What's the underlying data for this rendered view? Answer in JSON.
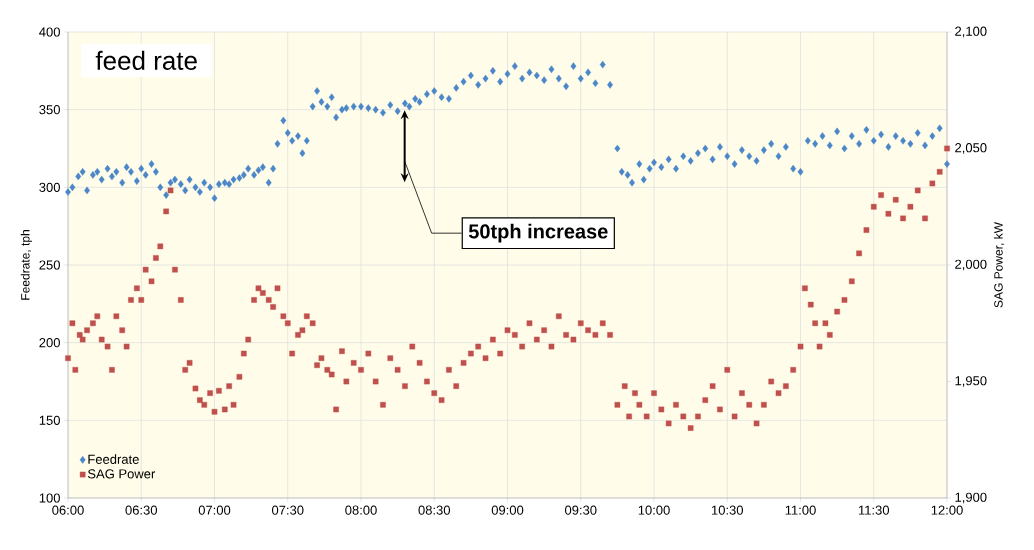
{
  "chart_data": {
    "type": "scatter",
    "title": "feed rate",
    "ylabel": "Feedrate, tph",
    "y2label": "SAG Power, kW",
    "xlim": [
      6,
      12
    ],
    "xticks": [
      {
        "value": 6,
        "label": "06:00"
      },
      {
        "value": 6.5,
        "label": "06:30"
      },
      {
        "value": 7,
        "label": "07:00"
      },
      {
        "value": 7.5,
        "label": "07:30"
      },
      {
        "value": 8,
        "label": "08:00"
      },
      {
        "value": 8.5,
        "label": "08:30"
      },
      {
        "value": 9,
        "label": "09:00"
      },
      {
        "value": 9.5,
        "label": "09:30"
      },
      {
        "value": 10,
        "label": "10:00"
      },
      {
        "value": 10.5,
        "label": "10:30"
      },
      {
        "value": 11,
        "label": "11:00"
      },
      {
        "value": 11.5,
        "label": "11:30"
      },
      {
        "value": 12,
        "label": "12:00"
      }
    ],
    "ylim": [
      100,
      400
    ],
    "yticks": [
      100,
      150,
      200,
      250,
      300,
      350,
      400
    ],
    "y2lim": [
      1900,
      2100
    ],
    "y2ticks": [
      {
        "value": 1900,
        "label": "1,900"
      },
      {
        "value": 1950,
        "label": "1,950"
      },
      {
        "value": 2000,
        "label": "2,000"
      },
      {
        "value": 2050,
        "label": "2,050"
      },
      {
        "value": 2100,
        "label": "2,100"
      }
    ],
    "grid": true,
    "legend": "bottom left",
    "annotations": [
      "50tph increase"
    ],
    "series": [
      {
        "name": "Feedrate",
        "color": "#4a86c8",
        "marker": "diamond",
        "x": [
          6.0,
          6.03,
          6.07,
          6.1,
          6.13,
          6.17,
          6.2,
          6.23,
          6.27,
          6.3,
          6.33,
          6.37,
          6.4,
          6.43,
          6.47,
          6.5,
          6.53,
          6.57,
          6.6,
          6.63,
          6.67,
          6.7,
          6.73,
          6.77,
          6.8,
          6.83,
          6.87,
          6.9,
          6.93,
          6.97,
          7.0,
          7.03,
          7.07,
          7.1,
          7.13,
          7.17,
          7.2,
          7.23,
          7.27,
          7.3,
          7.33,
          7.37,
          7.4,
          7.43,
          7.47,
          7.5,
          7.53,
          7.57,
          7.6,
          7.63,
          7.67,
          7.7,
          7.73,
          7.77,
          7.8,
          7.83,
          7.87,
          7.9,
          7.95,
          8.0,
          8.05,
          8.1,
          8.15,
          8.2,
          8.25,
          8.3,
          8.33,
          8.37,
          8.4,
          8.45,
          8.5,
          8.55,
          8.6,
          8.65,
          8.7,
          8.75,
          8.8,
          8.85,
          8.9,
          8.95,
          9.0,
          9.05,
          9.1,
          9.15,
          9.2,
          9.25,
          9.3,
          9.35,
          9.4,
          9.45,
          9.5,
          9.55,
          9.6,
          9.65,
          9.7,
          9.75,
          9.78,
          9.82,
          9.85,
          9.9,
          9.93,
          9.97,
          10.0,
          10.05,
          10.1,
          10.15,
          10.2,
          10.25,
          10.3,
          10.35,
          10.4,
          10.45,
          10.5,
          10.55,
          10.6,
          10.65,
          10.7,
          10.75,
          10.8,
          10.85,
          10.9,
          10.95,
          11.0,
          11.05,
          11.1,
          11.15,
          11.2,
          11.25,
          11.3,
          11.35,
          11.4,
          11.45,
          11.5,
          11.55,
          11.6,
          11.65,
          11.7,
          11.75,
          11.8,
          11.85,
          11.9,
          11.95,
          12.0
        ],
        "values": [
          297,
          300,
          307,
          310,
          298,
          308,
          310,
          305,
          312,
          307,
          310,
          303,
          313,
          310,
          304,
          312,
          308,
          315,
          310,
          300,
          295,
          303,
          305,
          302,
          298,
          305,
          300,
          297,
          303,
          300,
          293,
          302,
          303,
          302,
          305,
          306,
          308,
          312,
          308,
          311,
          313,
          303,
          312,
          328,
          343,
          335,
          330,
          333,
          322,
          330,
          352,
          362,
          355,
          352,
          358,
          345,
          350,
          351,
          352,
          352,
          351,
          350,
          348,
          353,
          349,
          354,
          352,
          357,
          355,
          360,
          362,
          358,
          357,
          364,
          368,
          372,
          366,
          370,
          375,
          368,
          373,
          378,
          370,
          374,
          372,
          369,
          376,
          370,
          365,
          378,
          370,
          374,
          367,
          379,
          366,
          325,
          310,
          308,
          303,
          315,
          305,
          312,
          316,
          313,
          318,
          312,
          320,
          317,
          322,
          325,
          318,
          326,
          320,
          315,
          324,
          320,
          317,
          324,
          328,
          320,
          326,
          312,
          310,
          330,
          328,
          333,
          327,
          336,
          325,
          333,
          328,
          337,
          330,
          334,
          326,
          333,
          330,
          328,
          335,
          327,
          333,
          338,
          315
        ]
      },
      {
        "name": "SAG Power",
        "color": "#c0504d",
        "marker": "square",
        "axis": "y2",
        "x": [
          6.0,
          6.03,
          6.05,
          6.08,
          6.1,
          6.13,
          6.17,
          6.2,
          6.23,
          6.27,
          6.3,
          6.33,
          6.37,
          6.4,
          6.43,
          6.47,
          6.5,
          6.53,
          6.57,
          6.6,
          6.63,
          6.67,
          6.7,
          6.73,
          6.77,
          6.8,
          6.83,
          6.87,
          6.9,
          6.93,
          6.97,
          7.0,
          7.03,
          7.07,
          7.1,
          7.13,
          7.17,
          7.2,
          7.23,
          7.27,
          7.3,
          7.33,
          7.37,
          7.4,
          7.43,
          7.47,
          7.5,
          7.53,
          7.57,
          7.6,
          7.63,
          7.67,
          7.7,
          7.73,
          7.77,
          7.8,
          7.83,
          7.87,
          7.9,
          7.95,
          8.0,
          8.05,
          8.1,
          8.15,
          8.2,
          8.25,
          8.3,
          8.35,
          8.4,
          8.45,
          8.5,
          8.55,
          8.6,
          8.65,
          8.7,
          8.75,
          8.8,
          8.85,
          8.9,
          8.95,
          9.0,
          9.05,
          9.1,
          9.15,
          9.2,
          9.25,
          9.3,
          9.35,
          9.4,
          9.45,
          9.5,
          9.55,
          9.6,
          9.65,
          9.7,
          9.75,
          9.8,
          9.83,
          9.87,
          9.9,
          9.95,
          10.0,
          10.05,
          10.1,
          10.15,
          10.2,
          10.25,
          10.3,
          10.35,
          10.4,
          10.45,
          10.5,
          10.55,
          10.6,
          10.65,
          10.7,
          10.75,
          10.8,
          10.85,
          10.9,
          10.95,
          11.0,
          11.03,
          11.07,
          11.1,
          11.13,
          11.17,
          11.2,
          11.25,
          11.3,
          11.35,
          11.4,
          11.45,
          11.5,
          11.55,
          11.6,
          11.65,
          11.7,
          11.75,
          11.8,
          11.85,
          11.9,
          11.95,
          12.0
        ],
        "values": [
          1960,
          1975,
          1955,
          1970,
          1968,
          1972,
          1975,
          1978,
          1968,
          1965,
          1955,
          1978,
          1972,
          1965,
          1985,
          1990,
          1985,
          1998,
          1993,
          2003,
          2008,
          2023,
          2032,
          1998,
          1985,
          1955,
          1958,
          1947,
          1942,
          1940,
          1945,
          1937,
          1946,
          1938,
          1948,
          1940,
          1952,
          1962,
          1968,
          1985,
          1990,
          1988,
          1985,
          1982,
          1990,
          1978,
          1975,
          1962,
          1970,
          1972,
          1978,
          1975,
          1957,
          1960,
          1955,
          1953,
          1938,
          1963,
          1950,
          1958,
          1955,
          1962,
          1950,
          1940,
          1960,
          1955,
          1948,
          1965,
          1958,
          1950,
          1945,
          1942,
          1955,
          1948,
          1958,
          1962,
          1965,
          1960,
          1968,
          1962,
          1972,
          1970,
          1965,
          1975,
          1968,
          1972,
          1965,
          1978,
          1970,
          1968,
          1975,
          1972,
          1970,
          1975,
          1970,
          1940,
          1948,
          1935,
          1945,
          1940,
          1935,
          1945,
          1938,
          1932,
          1940,
          1935,
          1930,
          1935,
          1942,
          1948,
          1938,
          1955,
          1935,
          1945,
          1940,
          1932,
          1940,
          1950,
          1945,
          1948,
          1955,
          1965,
          1990,
          1983,
          1975,
          1965,
          1975,
          1970,
          1980,
          1985,
          1993,
          2005,
          2015,
          2025,
          2030,
          2022,
          2028,
          2020,
          2025,
          2032,
          2020,
          2035,
          2040,
          2050
        ]
      }
    ]
  }
}
